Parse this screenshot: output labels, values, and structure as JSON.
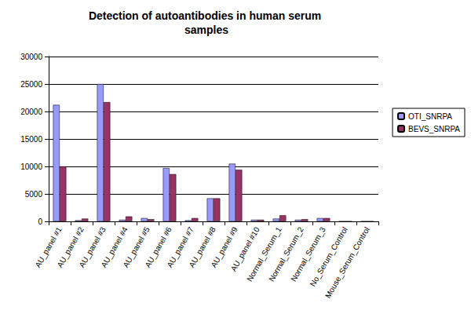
{
  "chart_data": {
    "type": "bar",
    "title": "Detection of autoantibodies in human serum samples",
    "categories": [
      "AU_panel #1",
      "AU_panel #2",
      "AU_panel #3",
      "AU_panel #4",
      "AU_panel #5",
      "AU_panel #6",
      "AU_panel #7",
      "AU_panel #8",
      "AU_panel #9",
      "AU_panel #10",
      "Normal_Serum_1",
      "Normal_Serum_2",
      "Normal_Serum_3",
      "No_Serum_Control",
      "Mouse_Serum_Control"
    ],
    "series": [
      {
        "name": "OTI_SNRPA",
        "color": "#9999ff",
        "values": [
          21200,
          200,
          25000,
          300,
          600,
          9700,
          200,
          4200,
          10500,
          300,
          500,
          300,
          600,
          0,
          0
        ]
      },
      {
        "name": "BEVS_SNRPA",
        "color": "#993366",
        "values": [
          10000,
          500,
          21700,
          900,
          400,
          8600,
          600,
          4200,
          9400,
          300,
          1100,
          400,
          600,
          0,
          0
        ]
      }
    ],
    "ylim": [
      0,
      30000
    ],
    "yticks": [
      0,
      5000,
      10000,
      15000,
      20000,
      25000,
      30000
    ],
    "grid": true,
    "legend": "right"
  }
}
